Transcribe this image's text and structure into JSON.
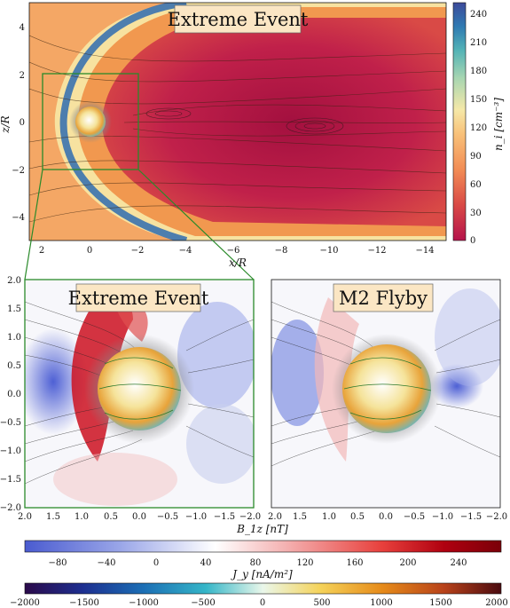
{
  "top_panel": {
    "title": "Extreme Event",
    "xlabel": "x/R",
    "ylabel": "z/R",
    "x_ticks": [
      "2",
      "0",
      "−2",
      "−4",
      "−6",
      "−8",
      "−10",
      "−12",
      "−14"
    ],
    "y_ticks": [
      "4",
      "2",
      "0",
      "−2",
      "−4"
    ],
    "colorbar": {
      "label": "n_i [cm⁻³]",
      "ticks": [
        "240",
        "210",
        "180",
        "150",
        "120",
        "90",
        "60",
        "30",
        "0"
      ],
      "range": [
        0,
        250
      ],
      "colors": [
        "#b5134b",
        "#d94a46",
        "#f28d55",
        "#f8c27a",
        "#f5e8a8",
        "#a9d6b1",
        "#53b3b6",
        "#2f7ab2",
        "#3d4a9a"
      ]
    }
  },
  "bottom_panels": [
    {
      "title": "Extreme Event"
    },
    {
      "title": "M2 Flyby"
    }
  ],
  "bottom_axes": {
    "xlabel": "B_1z [nT]",
    "x_ticks": [
      "2.0",
      "1.5",
      "1.0",
      "0.5",
      "0.0",
      "−0.5",
      "−1.0",
      "−1.5",
      "−2.0"
    ],
    "y_ticks": [
      "2.0",
      "1.5",
      "1.0",
      "0.5",
      "0.0",
      "−0.5",
      "−1.0",
      "−1.5",
      "−2.0"
    ]
  },
  "colorbar_jy": {
    "label": "J_y [nA/m²]",
    "ticks": [
      "−80",
      "−40",
      "0",
      "40",
      "80",
      "120",
      "160",
      "200",
      "240"
    ],
    "colors": [
      "#4a5bd0",
      "#9aa6e8",
      "#ffffff",
      "#f4b0b0",
      "#e8403c",
      "#b00010",
      "#7a0008"
    ]
  },
  "colorbar_b": {
    "ticks": [
      "−2000",
      "−1500",
      "−1000",
      "−500",
      "0",
      "500",
      "1000",
      "1500",
      "2000"
    ],
    "colors": [
      "#2b0a4a",
      "#1d2e8f",
      "#1c6fb5",
      "#35b6c8",
      "#eaf7ea",
      "#f5d35a",
      "#e68b1a",
      "#b8421a",
      "#4a0a10"
    ]
  }
}
